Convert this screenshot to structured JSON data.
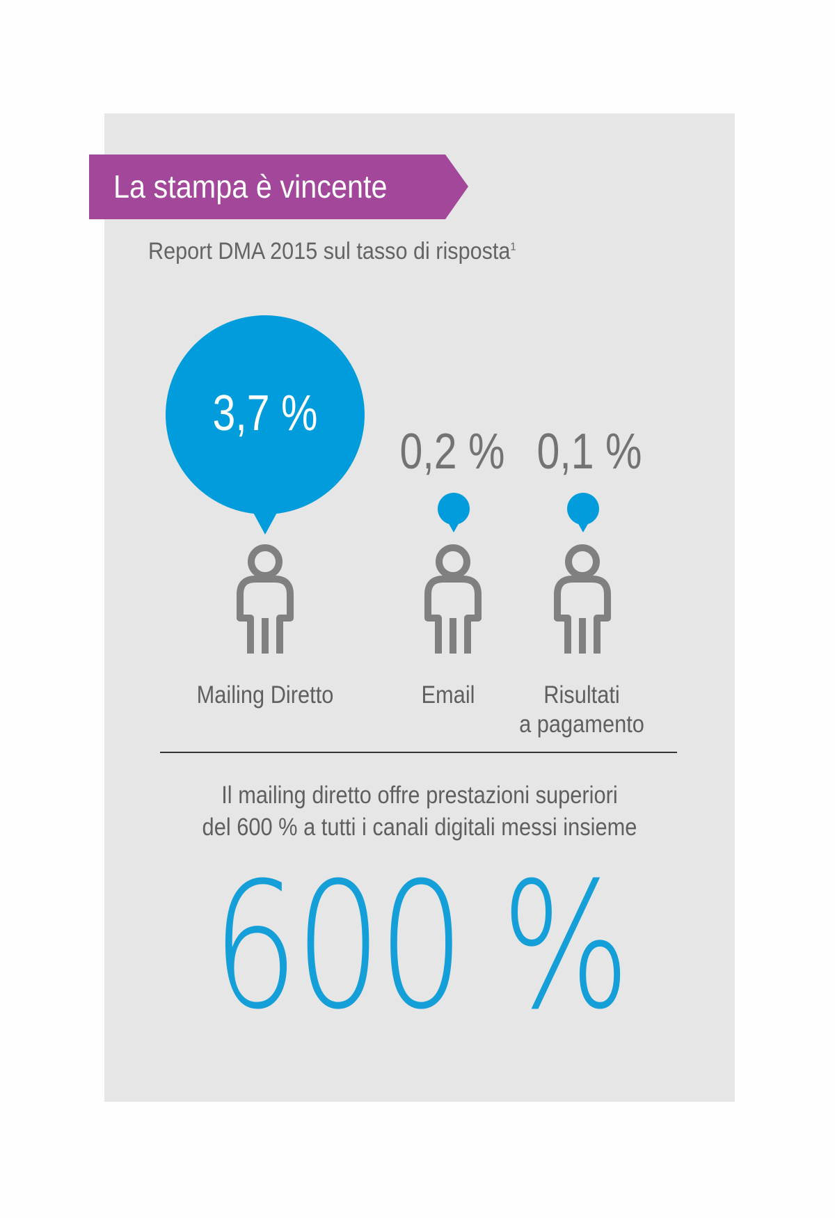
{
  "colors": {
    "banner": "#a3479a",
    "accent_blue": "#009cdc",
    "panel": "#e6e6e6",
    "text_gray": "#646464",
    "icon_gray": "#808080"
  },
  "header": {
    "title": "La stampa è vincente",
    "subtitle": "Report DMA 2015 sul tasso di risposta",
    "subtitle_footnote": "1"
  },
  "channels": [
    {
      "value": "3,7 %",
      "label_lines": [
        "Mailing Diretto"
      ],
      "icon": "person-icon"
    },
    {
      "value": "0,2 %",
      "label_lines": [
        "Email"
      ],
      "icon": "person-icon"
    },
    {
      "value": "0,1 %",
      "label_lines": [
        "Risultati",
        "a pagamento"
      ],
      "icon": "person-icon"
    }
  ],
  "caption": {
    "line1": "Il mailing diretto offre prestazioni superiori",
    "line2": "del 600 % a tutti i canali digitali messi insieme"
  },
  "hero": {
    "value": "600 %"
  }
}
